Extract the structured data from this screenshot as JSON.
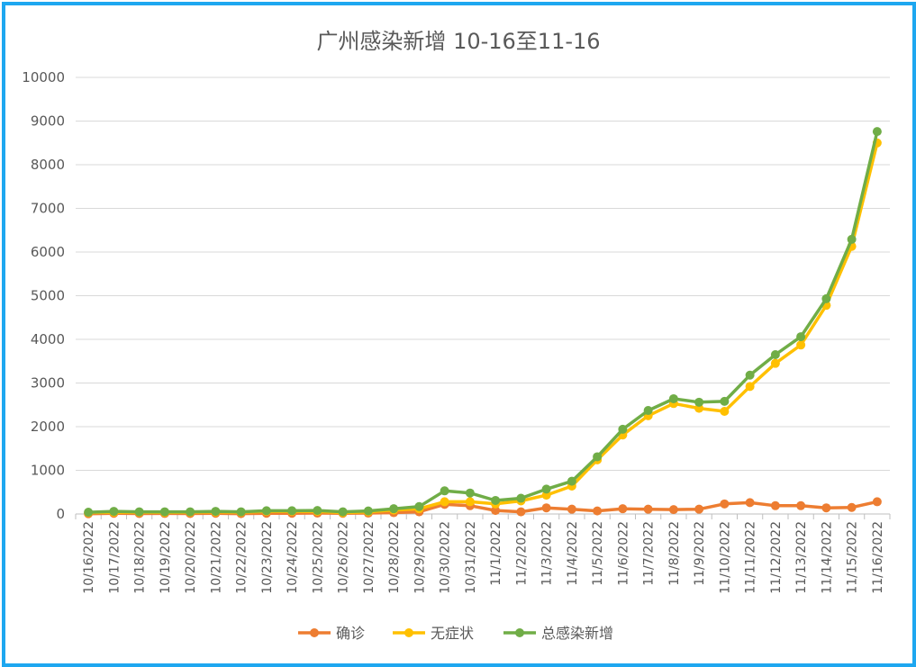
{
  "chart_data": {
    "type": "line",
    "title": "广州感染新增 10-16至11-16",
    "xlabel": "",
    "ylabel": "",
    "ylim": [
      0,
      10000
    ],
    "yticks": [
      0,
      1000,
      2000,
      3000,
      4000,
      5000,
      6000,
      7000,
      8000,
      9000,
      10000
    ],
    "grid": true,
    "legend_position": "bottom",
    "categories": [
      "10/16/2022",
      "10/17/2022",
      "10/18/2022",
      "10/19/2022",
      "10/20/2022",
      "10/21/2022",
      "10/22/2022",
      "10/23/2022",
      "10/24/2022",
      "10/25/2022",
      "10/26/2022",
      "10/27/2022",
      "10/28/2022",
      "10/29/2022",
      "10/30/2022",
      "10/31/2022",
      "11/1/2022",
      "11/2/2022",
      "11/3/2022",
      "11/4/2022",
      "11/5/2022",
      "11/6/2022",
      "11/7/2022",
      "11/8/2022",
      "11/9/2022",
      "11/10/2022",
      "11/11/2022",
      "11/12/2022",
      "11/13/2022",
      "11/14/2022",
      "11/15/2022",
      "11/16/2022"
    ],
    "series": [
      {
        "name": "确诊",
        "color": "#ed7d31",
        "values": [
          5,
          15,
          10,
          12,
          10,
          15,
          8,
          15,
          15,
          20,
          15,
          20,
          30,
          50,
          220,
          190,
          80,
          50,
          140,
          110,
          70,
          120,
          110,
          100,
          110,
          230,
          260,
          190,
          190,
          140,
          150,
          280
        ]
      },
      {
        "name": "无症状",
        "color": "#ffc000",
        "values": [
          30,
          40,
          40,
          35,
          40,
          45,
          40,
          60,
          60,
          60,
          30,
          50,
          90,
          120,
          280,
          280,
          230,
          300,
          430,
          640,
          1240,
          1810,
          2250,
          2530,
          2420,
          2350,
          2920,
          3450,
          3870,
          4780,
          6130,
          8500
        ]
      },
      {
        "name": "总感染新增",
        "color": "#70ad47",
        "values": [
          40,
          60,
          50,
          50,
          50,
          60,
          50,
          75,
          75,
          80,
          50,
          70,
          120,
          170,
          530,
          480,
          310,
          360,
          570,
          750,
          1310,
          1940,
          2370,
          2640,
          2560,
          2580,
          3180,
          3650,
          4060,
          4930,
          6290,
          8760
        ]
      }
    ]
  }
}
